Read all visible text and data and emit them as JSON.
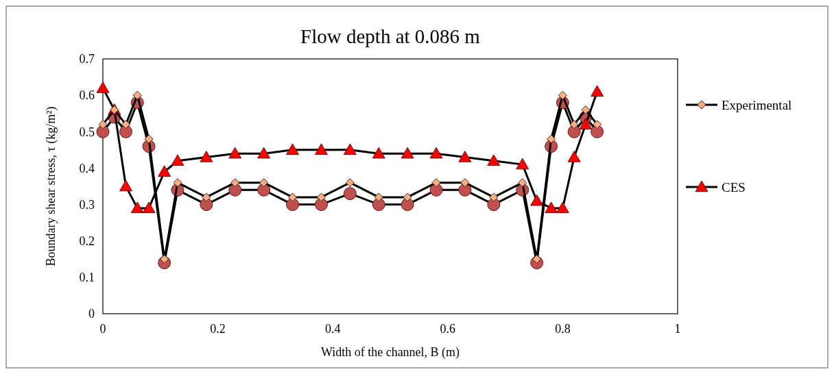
{
  "chart_data": {
    "type": "line",
    "title": "Flow depth at 0.086 m",
    "xlabel": "Width of the channel, B (m)",
    "ylabel": "Boundary shear stress, τ (kg/m²)",
    "x": [
      0,
      0.02,
      0.04,
      0.06,
      0.08,
      0.107,
      0.13,
      0.18,
      0.23,
      0.28,
      0.33,
      0.38,
      0.43,
      0.48,
      0.53,
      0.58,
      0.63,
      0.68,
      0.73,
      0.755,
      0.78,
      0.8,
      0.82,
      0.84,
      0.86
    ],
    "series": [
      {
        "name": "Experimental",
        "color": "#f4b183",
        "marker": "diamond",
        "values": [
          0.52,
          0.56,
          0.52,
          0.6,
          0.48,
          0.15,
          0.36,
          0.32,
          0.36,
          0.36,
          0.32,
          0.32,
          0.36,
          0.32,
          0.32,
          0.36,
          0.36,
          0.32,
          0.36,
          0.15,
          0.48,
          0.6,
          0.52,
          0.56,
          0.52
        ]
      },
      {
        "name": "CES",
        "color": "#ff0000",
        "marker": "triangle",
        "values": [
          0.62,
          0.56,
          0.35,
          0.29,
          0.29,
          0.39,
          0.42,
          0.43,
          0.44,
          0.44,
          0.45,
          0.45,
          0.45,
          0.44,
          0.44,
          0.44,
          0.43,
          0.42,
          0.41,
          0.31,
          0.29,
          0.29,
          0.43,
          0.52,
          0.61
        ]
      },
      {
        "color": "#c0504d",
        "marker": "circle",
        "values": [
          0.5,
          0.54,
          0.5,
          0.58,
          0.46,
          0.14,
          0.34,
          0.3,
          0.34,
          0.34,
          0.3,
          0.3,
          0.33,
          0.3,
          0.3,
          0.34,
          0.34,
          0.3,
          0.34,
          0.14,
          0.46,
          0.58,
          0.5,
          0.54,
          0.5
        ]
      }
    ],
    "xlim": [
      0,
      1
    ],
    "xticks": [
      0,
      0.2,
      0.4,
      0.6,
      0.8,
      1
    ],
    "ylim": [
      0,
      0.7
    ],
    "yticks": [
      0,
      0.1,
      0.2,
      0.3,
      0.4,
      0.5,
      0.6,
      0.7
    ],
    "grid": false,
    "legend": "right",
    "line_style": "solid"
  }
}
